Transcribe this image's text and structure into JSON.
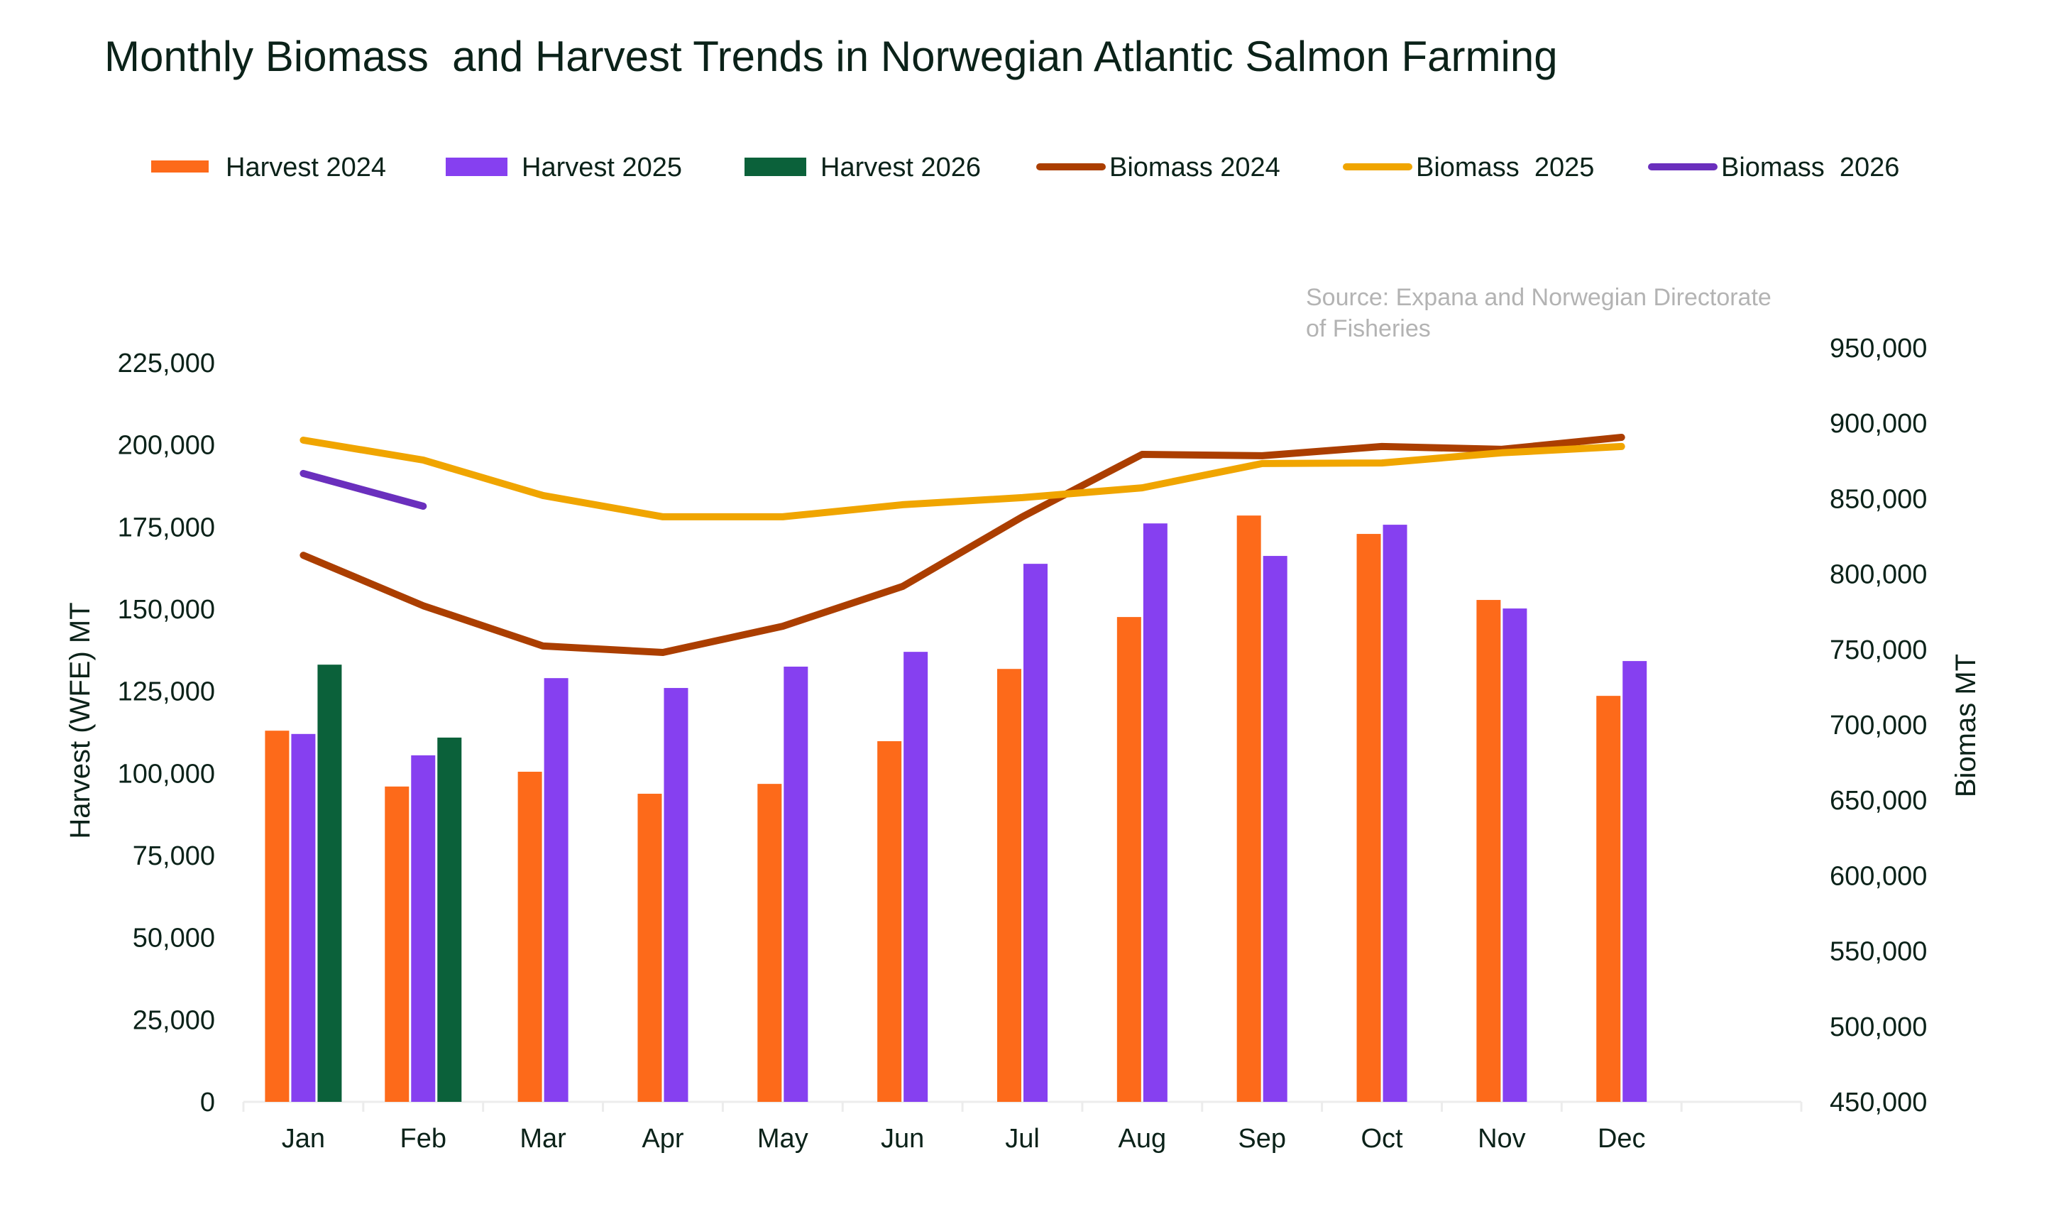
{
  "chart_data": {
    "type": "bar",
    "title": "Monthly Biomass  and Harvest Trends in Norwegian Atlantic Salmon Farming",
    "source": [
      "Source: Expana and Norwegian Directorate",
      "of Fisheries"
    ],
    "categories": [
      "Jan",
      "Feb",
      "Mar",
      "Apr",
      "May",
      "Jun",
      "Jul",
      "Aug",
      "Sep",
      "Oct",
      "Nov",
      "Dec"
    ],
    "empty_trailing_slots": 1,
    "legend_position": "top",
    "grid": false,
    "y_left": {
      "label": "Harvest (WFE) MT",
      "range": [
        0,
        225000
      ],
      "ticks": [
        0,
        25000,
        50000,
        75000,
        100000,
        125000,
        150000,
        175000,
        200000,
        225000
      ],
      "tick_labels": [
        "0",
        "25,000",
        "50,000",
        "75,000",
        "100,000",
        "125,000",
        "150,000",
        "175,000",
        "200,000",
        "225,000"
      ]
    },
    "y_right": {
      "label": "Biomas MT",
      "range": [
        450000,
        950000
      ],
      "ticks": [
        450000,
        500000,
        550000,
        600000,
        650000,
        700000,
        750000,
        800000,
        850000,
        900000,
        950000
      ],
      "tick_labels": [
        "450,000",
        "500,000",
        "550,000",
        "600,000",
        "650,000",
        "700,000",
        "750,000",
        "800,000",
        "850,000",
        "900,000",
        "950,000"
      ]
    },
    "bar_series": [
      {
        "name": "Harvest 2024",
        "color": "#fd6a1a",
        "axis": "left",
        "values": [
          113000,
          96000,
          100500,
          93800,
          96800,
          109800,
          131800,
          147600,
          178500,
          172900,
          152800,
          123600
        ]
      },
      {
        "name": "Harvest 2025",
        "color": "#8640f0",
        "axis": "left",
        "values": [
          112000,
          105500,
          129000,
          126000,
          132500,
          137000,
          163800,
          176100,
          166200,
          175700,
          150200,
          134200
        ]
      },
      {
        "name": "Harvest 2026",
        "color": "#0b613a",
        "axis": "left",
        "values": [
          133100,
          110900,
          null,
          null,
          null,
          null,
          null,
          null,
          null,
          null,
          null,
          null
        ]
      }
    ],
    "line_series": [
      {
        "name": "Biomass 2024",
        "color": "#ab3e00",
        "axis": "right",
        "values": [
          812500,
          779000,
          752300,
          748000,
          765400,
          791800,
          838000,
          879400,
          878500,
          884600,
          882700,
          890700
        ]
      },
      {
        "name": "Biomass  2025",
        "color": "#f0a500",
        "axis": "right",
        "values": [
          888800,
          875600,
          852100,
          838000,
          838000,
          846000,
          850700,
          857200,
          873300,
          873700,
          880400,
          884600
        ]
      },
      {
        "name": "Biomass  2026",
        "color": "#6a2fbd",
        "axis": "right",
        "values": [
          866700,
          845000,
          null,
          null,
          null,
          null,
          null,
          null,
          null,
          null,
          null,
          null
        ]
      }
    ],
    "legend": [
      {
        "label": "Harvest 2024",
        "kind": "bar",
        "color": "#fd6a1a"
      },
      {
        "label": "Harvest 2025",
        "kind": "bar",
        "color": "#8640f0"
      },
      {
        "label": "Harvest 2026",
        "kind": "bar",
        "color": "#0b613a"
      },
      {
        "label": "Biomass 2024",
        "kind": "line",
        "color": "#ab3e00"
      },
      {
        "label": "Biomass  2025",
        "kind": "line",
        "color": "#f0a500"
      },
      {
        "label": "Biomass  2026",
        "kind": "line",
        "color": "#6a2fbd"
      }
    ]
  }
}
